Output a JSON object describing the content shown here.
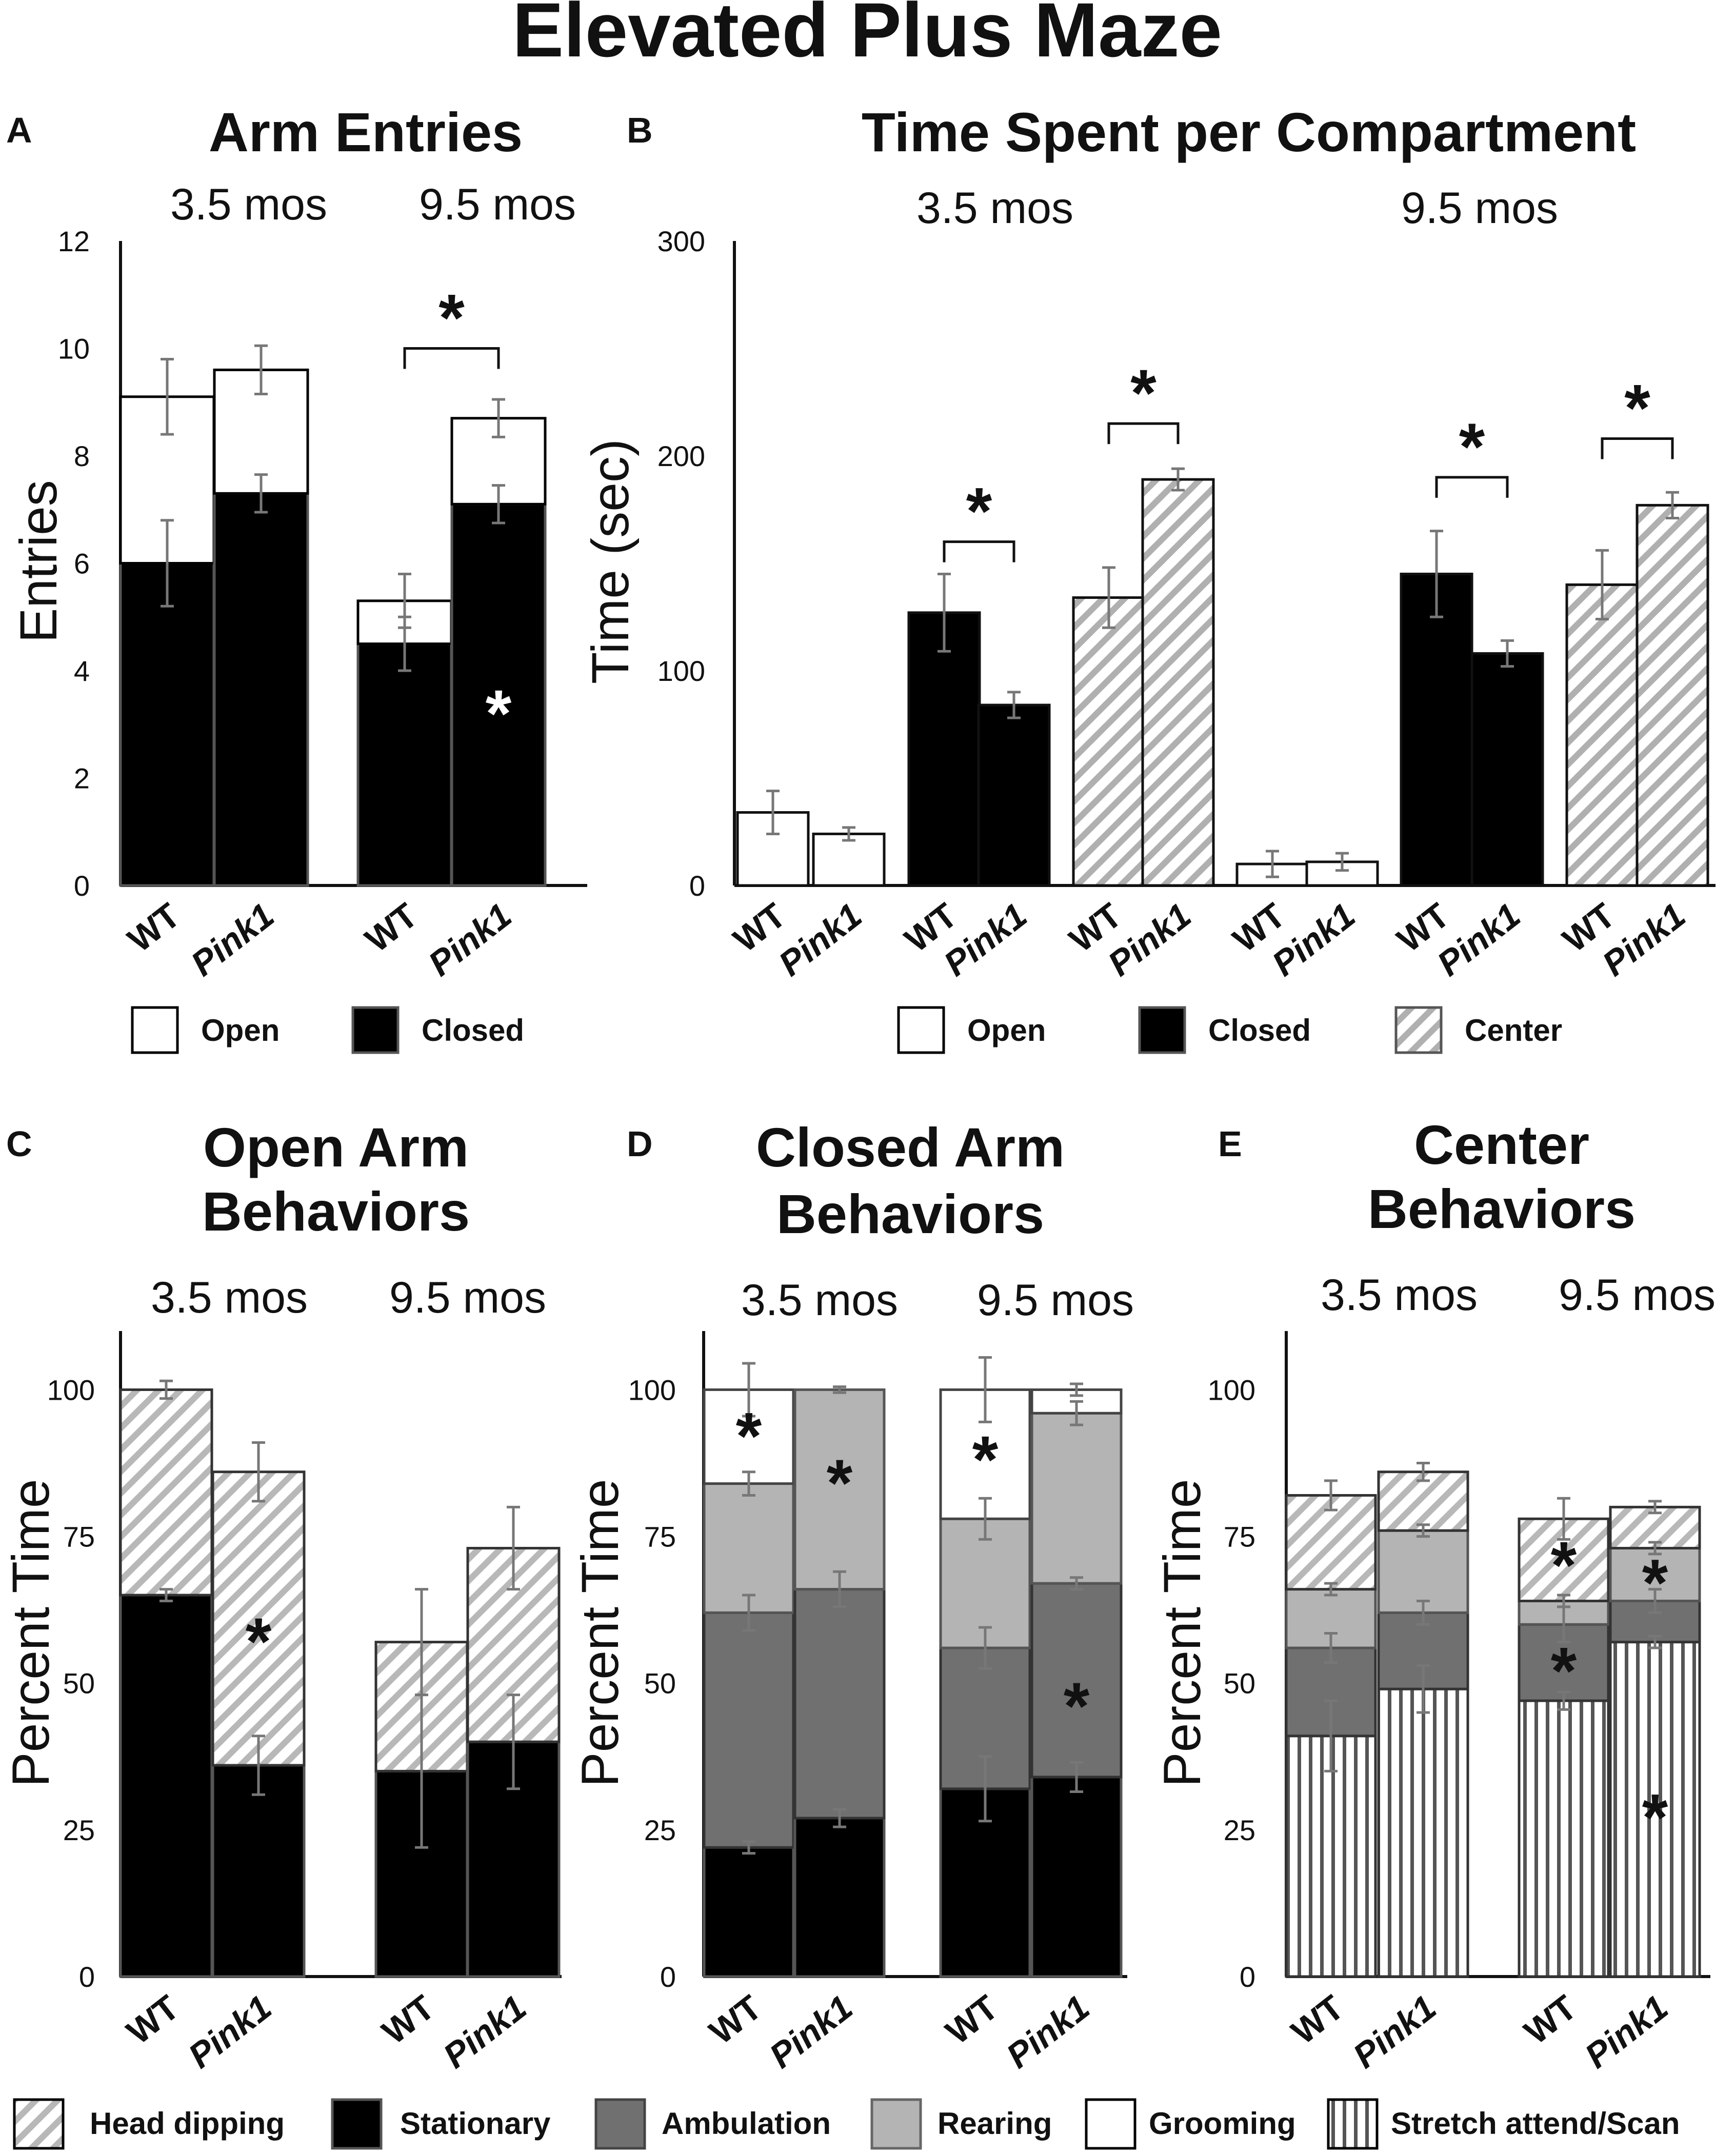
{
  "figure": {
    "title": "Elevated Plus Maze"
  },
  "colors": {
    "open": "#ffffff",
    "closed": "#000000",
    "center_stripe": "#b0b0b0",
    "stationary": "#000000",
    "ambulation": "#707070",
    "rearing": "#b4b4b4",
    "grooming": "#ffffff",
    "headdip_stripe": "#b8b8b8",
    "stretch_stripe": "#555555",
    "error_bar": "#777777"
  },
  "chart_data": [
    {
      "id": "A",
      "letter": "A",
      "type": "bar",
      "stacked": true,
      "title": "Arm Entries",
      "age_labels": [
        "3.5 mos",
        "9.5 mos"
      ],
      "ylabel": "Entries",
      "ylim": [
        0,
        12
      ],
      "yticks": [
        "0",
        "2",
        "4",
        "6",
        "8",
        "10",
        "12"
      ],
      "categories": [
        "WT",
        "Pink1",
        "WT",
        "Pink1"
      ],
      "series": [
        {
          "name": "Closed",
          "values": [
            6.0,
            7.3,
            4.5,
            7.1
          ],
          "err": [
            0.8,
            0.35,
            0.5,
            0.35
          ]
        },
        {
          "name": "Open",
          "values": [
            3.1,
            2.3,
            0.8,
            1.6
          ],
          "err": [
            0.7,
            0.45,
            0.5,
            0.35
          ]
        }
      ],
      "annotations": [
        {
          "text": "*",
          "type": "bracket",
          "from": 2,
          "to": 3,
          "y": 10.0
        },
        {
          "text": "*",
          "type": "inside",
          "bar": 3,
          "y": 3.3,
          "color": "#ffffff"
        }
      ],
      "legend": [
        {
          "label": "Open"
        },
        {
          "label": "Closed"
        }
      ]
    },
    {
      "id": "B",
      "letter": "B",
      "type": "bar",
      "stacked": false,
      "title": "Time Spent per Compartment",
      "age_labels": [
        "3.5 mos",
        "9.5 mos"
      ],
      "ylabel": "Time (sec)",
      "ylim": [
        0,
        300
      ],
      "yticks": [
        "0",
        "100",
        "200",
        "300"
      ],
      "categories": [
        "WT",
        "Pink1",
        "WT",
        "Pink1",
        "WT",
        "Pink1",
        "WT",
        "Pink1",
        "WT",
        "Pink1",
        "WT",
        "Pink1"
      ],
      "bar_series": [
        "Open",
        "Open",
        "Closed",
        "Closed",
        "Center",
        "Center",
        "Open",
        "Open",
        "Closed",
        "Closed",
        "Center",
        "Center"
      ],
      "values": [
        34,
        24,
        127,
        84,
        134,
        189,
        10,
        11,
        145,
        108,
        140,
        177
      ],
      "err": [
        10,
        3,
        18,
        6,
        14,
        5,
        6,
        4,
        20,
        6,
        16,
        6
      ],
      "annotations": [
        {
          "text": "*",
          "type": "bracket",
          "from": 2,
          "to": 3,
          "y": 160
        },
        {
          "text": "*",
          "type": "bracket",
          "from": 4,
          "to": 5,
          "y": 215
        },
        {
          "text": "*",
          "type": "bracket",
          "from": 8,
          "to": 9,
          "y": 190
        },
        {
          "text": "*",
          "type": "bracket",
          "from": 10,
          "to": 11,
          "y": 208
        }
      ],
      "legend": [
        {
          "label": "Open"
        },
        {
          "label": "Closed"
        },
        {
          "label": "Center"
        }
      ]
    },
    {
      "id": "C",
      "letter": "C",
      "type": "bar",
      "stacked": true,
      "title": [
        "Open Arm",
        "Behaviors"
      ],
      "age_labels": [
        "3.5 mos",
        "9.5 mos"
      ],
      "ylabel": "Percent Time",
      "ylim": [
        0,
        110
      ],
      "yticks": [
        "0",
        "25",
        "50",
        "75",
        "100"
      ],
      "categories": [
        "WT",
        "Pink1",
        "WT",
        "Pink1"
      ],
      "series": [
        {
          "name": "Stationary",
          "values": [
            65,
            36,
            35,
            40
          ],
          "err": [
            1,
            5,
            13,
            8
          ]
        },
        {
          "name": "Head dipping",
          "values": [
            35,
            50,
            22,
            33
          ],
          "err": [
            1.5,
            5,
            9,
            7
          ]
        }
      ],
      "annotations": [
        {
          "text": "*",
          "type": "inside",
          "bar": 1,
          "y": 58
        }
      ]
    },
    {
      "id": "D",
      "letter": "D",
      "type": "bar",
      "stacked": true,
      "title": [
        "Closed Arm",
        "Behaviors"
      ],
      "age_labels": [
        "3.5 mos",
        "9.5 mos"
      ],
      "ylabel": "Percent Time",
      "ylim": [
        0,
        110
      ],
      "yticks": [
        "0",
        "25",
        "50",
        "75",
        "100"
      ],
      "categories": [
        "WT",
        "Pink1",
        "WT",
        "Pink1"
      ],
      "series": [
        {
          "name": "Stationary",
          "values": [
            22,
            27,
            32,
            34
          ],
          "err": [
            1,
            1.5,
            5.5,
            2.5
          ]
        },
        {
          "name": "Ambulation",
          "values": [
            40,
            39,
            24,
            33
          ],
          "err": [
            3,
            3,
            3.5,
            1
          ]
        },
        {
          "name": "Rearing",
          "values": [
            22,
            34,
            22,
            29
          ],
          "err": [
            2,
            0.5,
            3.5,
            2
          ]
        },
        {
          "name": "Grooming",
          "values": [
            16,
            0,
            22,
            4
          ],
          "err": [
            4.5,
            0.5,
            5.5,
            1
          ]
        }
      ],
      "annotations": [
        {
          "text": "*",
          "type": "inside",
          "bar": 0,
          "y": 93
        },
        {
          "text": "*",
          "type": "inside",
          "bar": 1,
          "y": 85
        },
        {
          "text": "*",
          "type": "inside",
          "bar": 2,
          "y": 89
        },
        {
          "text": "*",
          "type": "inside",
          "bar": 3,
          "y": 47
        }
      ]
    },
    {
      "id": "E",
      "letter": "E",
      "type": "bar",
      "stacked": true,
      "title": [
        "Center",
        "Behaviors"
      ],
      "age_labels": [
        "3.5 mos",
        "9.5 mos"
      ],
      "ylabel": "Percent Time",
      "ylim": [
        0,
        110
      ],
      "yticks": [
        "0",
        "25",
        "50",
        "75",
        "100"
      ],
      "categories": [
        "WT",
        "Pink1",
        "WT",
        "Pink1"
      ],
      "series": [
        {
          "name": "Stretch attend/Scan",
          "values": [
            41,
            49,
            47,
            57
          ],
          "err": [
            6,
            4,
            1.5,
            1
          ]
        },
        {
          "name": "Ambulation",
          "values": [
            15,
            13,
            13,
            7
          ],
          "err": [
            2.5,
            2,
            3,
            2
          ]
        },
        {
          "name": "Rearing",
          "values": [
            10,
            14,
            4,
            9
          ],
          "err": [
            1,
            1,
            1,
            1
          ]
        },
        {
          "name": "Head dipping",
          "values": [
            16,
            10,
            14,
            7
          ],
          "err": [
            2.5,
            1.5,
            3.5,
            1
          ]
        }
      ],
      "annotations": [
        {
          "text": "*",
          "type": "inside",
          "bar": 2,
          "y": 71
        },
        {
          "text": "*",
          "type": "inside",
          "bar": 3,
          "y": 68
        },
        {
          "text": "*",
          "type": "inside",
          "bar": 2,
          "y": 53
        },
        {
          "text": "*",
          "type": "inside",
          "bar": 3,
          "y": 28
        }
      ]
    }
  ],
  "behavior_legend": [
    {
      "label": "Head dipping"
    },
    {
      "label": "Stationary"
    },
    {
      "label": "Ambulation"
    },
    {
      "label": "Rearing"
    },
    {
      "label": "Grooming"
    },
    {
      "label": "Stretch attend/Scan"
    }
  ]
}
